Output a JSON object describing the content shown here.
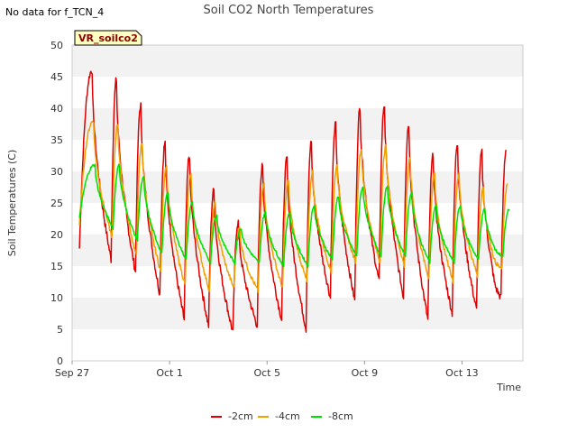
{
  "notice": "No data for f_TCN_4",
  "badge": "VR_soilco2",
  "chart_data": {
    "type": "line",
    "title": "Soil CO2 North Temperatures",
    "xlabel": "Time",
    "ylabel": "Soil Temperatures (C)",
    "ylim": [
      0,
      50
    ],
    "yticks": [
      0,
      5,
      10,
      15,
      20,
      25,
      30,
      35,
      40,
      45,
      50
    ],
    "xlim": [
      0,
      18.5
    ],
    "xticks": [
      {
        "label": "Sep 27",
        "value": 0
      },
      {
        "label": "Oct 1",
        "value": 4
      },
      {
        "label": "Oct 5",
        "value": 8
      },
      {
        "label": "Oct 9",
        "value": 12
      },
      {
        "label": "Oct 13",
        "value": 16
      }
    ],
    "grid": "horizontal bands",
    "legend": "bottom",
    "x_days": [
      0.3,
      1.3,
      2.3,
      3.3,
      4.3,
      5.3,
      6.3,
      7.3,
      8.3,
      9.3,
      10.3,
      11.3,
      12.3,
      13.3,
      14.3,
      15.3,
      16.3,
      17.3
    ],
    "series": [
      {
        "name": "-2cm",
        "color": "#dd0000",
        "start": [
          0.3,
          17.8
        ],
        "peaks": [
          46,
          44.5,
          40.5,
          34.5,
          32.5,
          27,
          22,
          31,
          32,
          34.5,
          37.5,
          40,
          40.5,
          37.5,
          32.5,
          34.5,
          33,
          33.5
        ],
        "troughs": [
          16,
          14,
          10.5,
          6.5,
          5.5,
          4.5,
          5.5,
          6.5,
          5,
          10,
          9.5,
          12.5,
          10,
          6.5,
          7.5,
          8,
          10,
          13.3
        ],
        "end": [
          17.3,
          13.3
        ]
      },
      {
        "name": "-4cm",
        "color": "#f0a000",
        "start": [
          0.3,
          21.5
        ],
        "peaks": [
          38,
          37.5,
          34.5,
          31,
          29.5,
          25,
          21,
          28,
          28.5,
          30,
          31,
          33.5,
          34,
          32,
          29.5,
          29.5,
          27.5,
          28
        ],
        "troughs": [
          19.5,
          16.5,
          14,
          12,
          11,
          11.5,
          11,
          11.5,
          12.5,
          14,
          15.5,
          15.5,
          15,
          13,
          12.5,
          13.5,
          14.5,
          16.5
        ],
        "end": [
          17.3,
          16.5
        ]
      },
      {
        "name": "-8cm",
        "color": "#00e000",
        "start": [
          0.3,
          22.5
        ],
        "peaks": [
          31,
          31,
          29,
          26.5,
          25,
          23,
          21,
          23.5,
          23.5,
          24.5,
          26,
          27.5,
          27.5,
          26.5,
          24.5,
          24.5,
          24,
          24
        ],
        "troughs": [
          21,
          19,
          17,
          16,
          15.5,
          15.5,
          15.5,
          15,
          15,
          16,
          16.5,
          16.5,
          16.5,
          15.5,
          15.5,
          16,
          16.5,
          18.3
        ],
        "end": [
          17.3,
          18.3
        ]
      }
    ]
  }
}
